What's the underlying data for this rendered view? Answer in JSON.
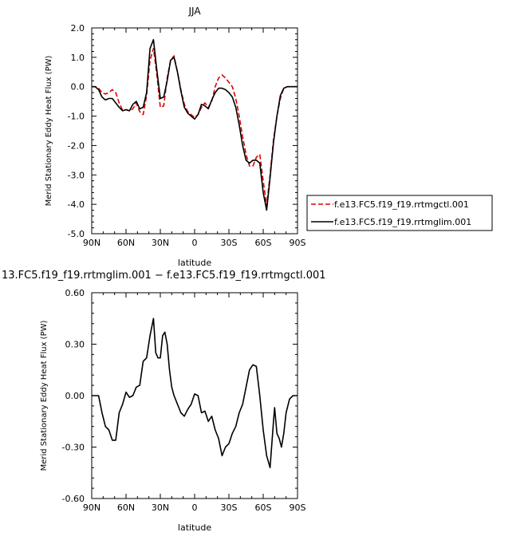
{
  "chart_data": [
    {
      "type": "line",
      "title": "JJA",
      "xlabel": "latitude",
      "ylabel": "Merid Stationary Eddy Heat Flux (PW)",
      "xlim": [
        90,
        -90
      ],
      "ylim": [
        -5.0,
        2.0
      ],
      "x_ticks": [
        {
          "value": 90,
          "label": "90N"
        },
        {
          "value": 60,
          "label": "60N"
        },
        {
          "value": 30,
          "label": "30N"
        },
        {
          "value": 0,
          "label": "0"
        },
        {
          "value": -30,
          "label": "30S"
        },
        {
          "value": -60,
          "label": "60S"
        },
        {
          "value": -90,
          "label": "90S"
        }
      ],
      "y_ticks": [
        {
          "value": 2.0,
          "label": "2.0"
        },
        {
          "value": 1.0,
          "label": "1.0"
        },
        {
          "value": 0.0,
          "label": "0.0"
        },
        {
          "value": -1.0,
          "label": "-1.0"
        },
        {
          "value": -2.0,
          "label": "-2.0"
        },
        {
          "value": -3.0,
          "label": "-3.0"
        },
        {
          "value": -4.0,
          "label": "-4.0"
        },
        {
          "value": -5.0,
          "label": "-5.0"
        }
      ],
      "legend_position": "right",
      "series": [
        {
          "name": "f.e13.FC5.f19_f19.rrtmgctl.001",
          "color": "#dd0000",
          "dash": "dashed",
          "x": [
            90,
            87,
            84,
            81,
            78,
            75,
            72,
            69,
            66,
            63,
            60,
            57,
            54,
            51,
            48,
            45,
            42,
            39,
            36,
            33,
            30,
            27,
            24,
            21,
            18,
            15,
            12,
            9,
            6,
            3,
            0,
            -3,
            -6,
            -9,
            -12,
            -15,
            -18,
            -21,
            -24,
            -27,
            -30,
            -33,
            -36,
            -39,
            -42,
            -45,
            -48,
            -51,
            -54,
            -57,
            -60,
            -63,
            -66,
            -69,
            -72,
            -75,
            -78,
            -81,
            -84,
            -87,
            -90
          ],
          "y": [
            0.0,
            0.0,
            -0.05,
            -0.2,
            -0.25,
            -0.2,
            -0.1,
            -0.2,
            -0.55,
            -0.8,
            -0.78,
            -0.82,
            -0.75,
            -0.55,
            -0.85,
            -0.95,
            -0.3,
            0.9,
            1.3,
            0.4,
            -0.7,
            -0.65,
            0.3,
            0.9,
            1.05,
            0.5,
            -0.1,
            -0.6,
            -0.85,
            -0.95,
            -1.05,
            -0.95,
            -0.7,
            -0.55,
            -0.7,
            -0.5,
            0.0,
            0.3,
            0.4,
            0.3,
            0.15,
            0.0,
            -0.4,
            -1.0,
            -1.7,
            -2.3,
            -2.7,
            -2.7,
            -2.4,
            -2.3,
            -3.2,
            -4.05,
            -3.0,
            -1.8,
            -1.0,
            -0.4,
            -0.05,
            0.0,
            0.0,
            0.0,
            0.0
          ]
        },
        {
          "name": "f.e13.FC5.f19_f19.rrtmglim.001",
          "color": "#000000",
          "dash": "solid",
          "x": [
            90,
            87,
            84,
            81,
            78,
            75,
            72,
            69,
            66,
            63,
            60,
            57,
            54,
            51,
            48,
            45,
            42,
            39,
            36,
            33,
            30,
            27,
            24,
            21,
            18,
            15,
            12,
            9,
            6,
            3,
            0,
            -3,
            -6,
            -9,
            -12,
            -15,
            -18,
            -21,
            -24,
            -27,
            -30,
            -33,
            -36,
            -39,
            -42,
            -45,
            -48,
            -51,
            -54,
            -57,
            -60,
            -63,
            -66,
            -69,
            -72,
            -75,
            -78,
            -81,
            -84,
            -87,
            -90
          ],
          "y": [
            0.0,
            0.0,
            -0.1,
            -0.35,
            -0.45,
            -0.4,
            -0.4,
            -0.55,
            -0.7,
            -0.82,
            -0.78,
            -0.82,
            -0.6,
            -0.5,
            -0.75,
            -0.7,
            -0.2,
            1.3,
            1.6,
            0.55,
            -0.4,
            -0.35,
            0.2,
            0.9,
            1.0,
            0.5,
            -0.15,
            -0.7,
            -0.9,
            -1.0,
            -1.1,
            -0.95,
            -0.6,
            -0.65,
            -0.75,
            -0.45,
            -0.2,
            -0.05,
            -0.05,
            -0.1,
            -0.2,
            -0.35,
            -0.7,
            -1.3,
            -2.0,
            -2.5,
            -2.6,
            -2.5,
            -2.5,
            -2.6,
            -3.6,
            -4.2,
            -3.1,
            -1.9,
            -1.0,
            -0.3,
            -0.05,
            0.0,
            0.0,
            0.0,
            0.0
          ]
        }
      ]
    },
    {
      "type": "line",
      "title": "13.FC5.f19_f19.rrtmglim.001 − f.e13.FC5.f19_f19.rrtmgctl.001",
      "xlabel": "latitude",
      "ylabel": "Merid Stationary Eddy Heat Flux (PW)",
      "xlim": [
        90,
        -90
      ],
      "ylim": [
        -0.6,
        0.6
      ],
      "x_ticks": [
        {
          "value": 90,
          "label": "90N"
        },
        {
          "value": 60,
          "label": "60N"
        },
        {
          "value": 30,
          "label": "30N"
        },
        {
          "value": 0,
          "label": "0"
        },
        {
          "value": -30,
          "label": "30S"
        },
        {
          "value": -60,
          "label": "60S"
        },
        {
          "value": -90,
          "label": "90S"
        }
      ],
      "y_ticks": [
        {
          "value": 0.6,
          "label": "0.60"
        },
        {
          "value": 0.3,
          "label": "0.30"
        },
        {
          "value": 0.0,
          "label": "0.00"
        },
        {
          "value": -0.3,
          "label": "-0.30"
        },
        {
          "value": -0.6,
          "label": "-0.60"
        }
      ],
      "series": [
        {
          "color": "#000000",
          "dash": "solid",
          "x": [
            90,
            87,
            84,
            81,
            78,
            75,
            72,
            69,
            66,
            63,
            60,
            57,
            54,
            51,
            48,
            45,
            42,
            39,
            36,
            34,
            32,
            30,
            28,
            26,
            24,
            22,
            20,
            18,
            15,
            12,
            9,
            6,
            3,
            0,
            -3,
            -6,
            -9,
            -12,
            -15,
            -18,
            -21,
            -24,
            -27,
            -30,
            -33,
            -36,
            -39,
            -42,
            -45,
            -48,
            -51,
            -54,
            -57,
            -60,
            -63,
            -66,
            -69,
            -70,
            -72,
            -74,
            -76,
            -78,
            -80,
            -83,
            -86,
            -88,
            -90
          ],
          "y": [
            0.0,
            0.0,
            0.0,
            -0.1,
            -0.18,
            -0.2,
            -0.26,
            -0.26,
            -0.1,
            -0.05,
            0.02,
            -0.01,
            0.0,
            0.05,
            0.06,
            0.2,
            0.22,
            0.35,
            0.45,
            0.25,
            0.22,
            0.22,
            0.35,
            0.37,
            0.3,
            0.15,
            0.05,
            0.0,
            -0.05,
            -0.1,
            -0.12,
            -0.08,
            -0.05,
            0.01,
            0.0,
            -0.1,
            -0.09,
            -0.15,
            -0.12,
            -0.2,
            -0.25,
            -0.35,
            -0.3,
            -0.28,
            -0.22,
            -0.18,
            -0.1,
            -0.05,
            0.05,
            0.15,
            0.18,
            0.17,
            0.0,
            -0.2,
            -0.35,
            -0.42,
            -0.15,
            -0.07,
            -0.22,
            -0.25,
            -0.3,
            -0.22,
            -0.1,
            -0.02,
            0.0,
            0.0,
            0.0
          ]
        }
      ]
    }
  ]
}
